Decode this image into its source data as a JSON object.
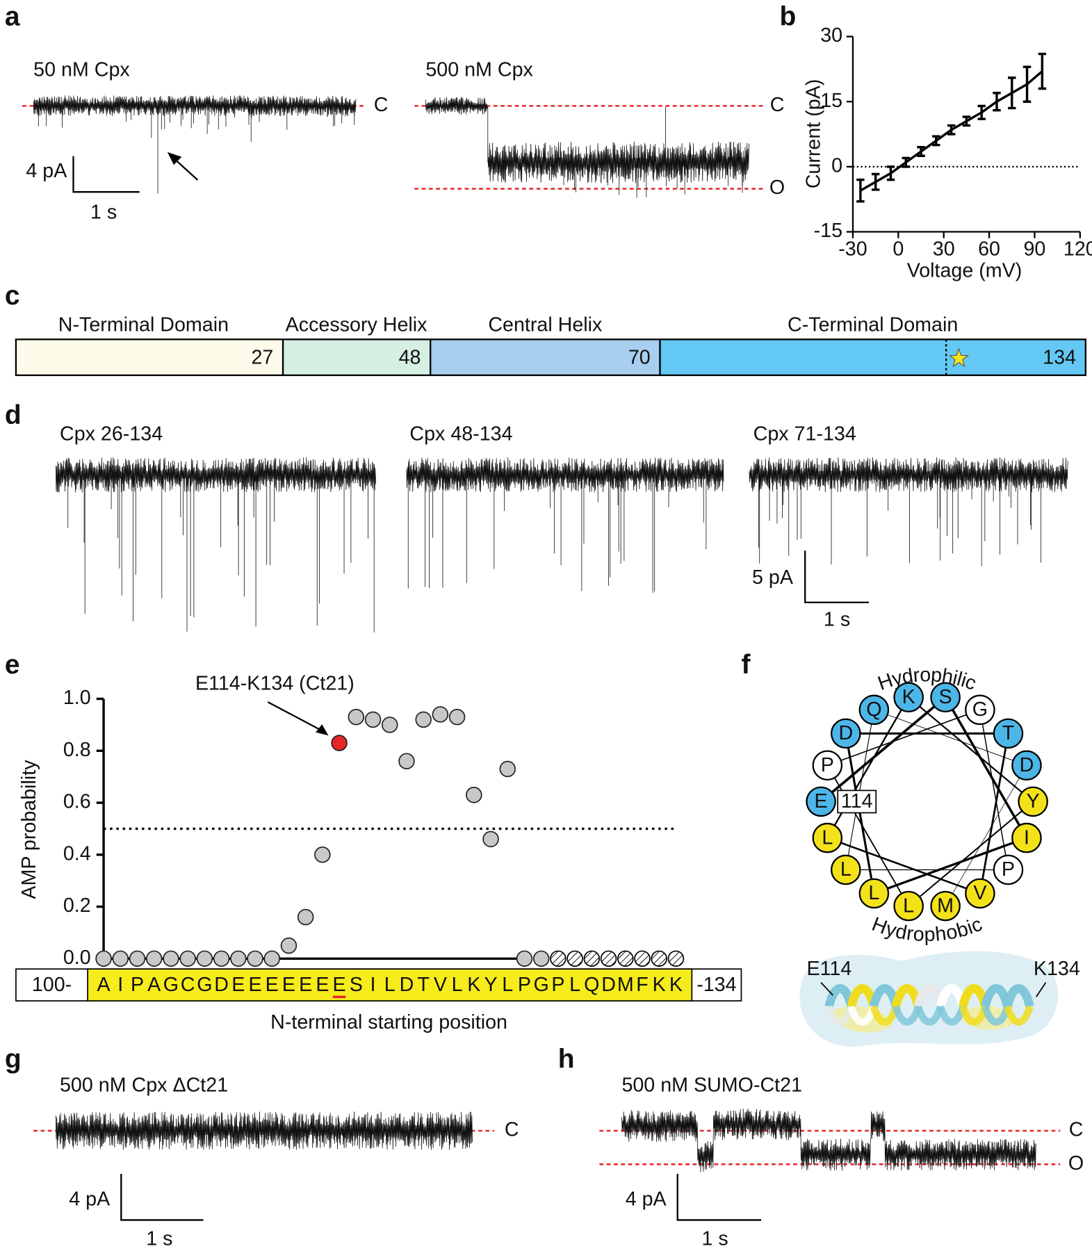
{
  "panel_a": {
    "label": "a",
    "left_trace": "50 nM Cpx",
    "right_trace": "500 nM Cpx",
    "closed": "C",
    "open": "O",
    "scale_current": "4 pA",
    "scale_time": "1 s"
  },
  "panel_c": {
    "label": "c",
    "domains": [
      {
        "name": "N-Terminal Domain",
        "end": 27,
        "color": "#fdfbea"
      },
      {
        "name": "Accessory Helix",
        "end": 48,
        "color": "#d5efe3"
      },
      {
        "name": "Central Helix",
        "end": 70,
        "color": "#a8cef0"
      },
      {
        "name": "C-Terminal Domain",
        "end": 134,
        "color": "#63c8f3"
      }
    ]
  },
  "panel_d": {
    "label": "d",
    "traces": [
      "Cpx 26-134",
      "Cpx 48-134",
      "Cpx 71-134"
    ],
    "scale_current": "5 pA",
    "scale_time": "1 s"
  },
  "panel_f": {
    "label": "f",
    "top_label": "Hydrophilic",
    "bottom_label": "Hydrophobic",
    "start_label": "114",
    "helix_start": "E114",
    "helix_end": "K134",
    "residues": [
      {
        "letter": "E",
        "color": "#4db6e8"
      },
      {
        "letter": "S",
        "color": "#4db6e8"
      },
      {
        "letter": "I",
        "color": "#f3e21a"
      },
      {
        "letter": "L",
        "color": "#f3e21a"
      },
      {
        "letter": "D",
        "color": "#4db6e8"
      },
      {
        "letter": "T",
        "color": "#4db6e8"
      },
      {
        "letter": "V",
        "color": "#f3e21a"
      },
      {
        "letter": "L",
        "color": "#f3e21a"
      },
      {
        "letter": "K",
        "color": "#4db6e8"
      },
      {
        "letter": "Y",
        "color": "#f3e21a"
      },
      {
        "letter": "L",
        "color": "#f3e21a"
      },
      {
        "letter": "P",
        "color": "#ffffff"
      },
      {
        "letter": "G",
        "color": "#ffffff"
      },
      {
        "letter": "P",
        "color": "#ffffff"
      },
      {
        "letter": "L",
        "color": "#f3e21a"
      },
      {
        "letter": "Q",
        "color": "#4db6e8"
      },
      {
        "letter": "D",
        "color": "#4db6e8"
      },
      {
        "letter": "M",
        "color": "#f3e21a"
      }
    ]
  },
  "panel_g": {
    "label": "g",
    "trace": "500 nM Cpx ΔCt21",
    "closed": "C",
    "scale_current": "4 pA",
    "scale_time": "1 s"
  },
  "panel_h": {
    "label": "h",
    "trace": "500 nM SUMO-Ct21",
    "closed": "C",
    "open": "O",
    "scale_current": "4 pA",
    "scale_time": "1 s"
  },
  "chart_data": [
    {
      "type": "line",
      "panel_label": "b",
      "x": [
        -25,
        -15,
        -5,
        5,
        15,
        25,
        35,
        45,
        55,
        65,
        75,
        85,
        95
      ],
      "series": [
        {
          "color": "#000000",
          "values": [
            -5.5,
            -3.5,
            -1.5,
            1,
            3.5,
            6,
            8.5,
            10.5,
            12.5,
            15,
            17,
            19,
            22
          ],
          "errors": [
            2.5,
            1.8,
            1.5,
            1,
            1,
            1,
            1,
            1,
            1.5,
            2,
            3.5,
            4,
            4
          ]
        }
      ],
      "xlim": [
        -30,
        120
      ],
      "xticks": [
        -30,
        0,
        30,
        60,
        90,
        120
      ],
      "ylim": [
        -15,
        30
      ],
      "yticks": [
        -15,
        0,
        15,
        30
      ],
      "x_label": "Voltage (mV)",
      "y_label": "Current (pA)",
      "reference_line": 0
    },
    {
      "type": "scatter",
      "panel_label": "e",
      "x": [
        100,
        101,
        102,
        103,
        104,
        105,
        106,
        107,
        108,
        109,
        110,
        111,
        112,
        113,
        114,
        115,
        116,
        117,
        118,
        119,
        120,
        121,
        122,
        123,
        124,
        125,
        126,
        127,
        128,
        129,
        130,
        131,
        132,
        133,
        134
      ],
      "series": [
        {
          "color": "#c8c8c8",
          "values": [
            0,
            0,
            0,
            0,
            0,
            0,
            0,
            0,
            0,
            0,
            0,
            0.05,
            0.16,
            0.4,
            0.83,
            0.93,
            0.92,
            0.9,
            0.76,
            0.92,
            0.94,
            0.93,
            0.63,
            0.46,
            0.73,
            0,
            0,
            null,
            null,
            null,
            null,
            null,
            null,
            null,
            null
          ]
        }
      ],
      "highlight_color": "#e8262a",
      "annotation": {
        "text": "E114-K134 (Ct21)",
        "x": 114
      },
      "threshold": 0.5,
      "ylim": [
        0,
        1
      ],
      "yticks": [
        {
          "value": 0,
          "label": "0.0"
        },
        {
          "value": 0.2,
          "label": "0.2"
        },
        {
          "value": 0.4,
          "label": "0.4"
        },
        {
          "value": 0.6,
          "label": "0.6"
        },
        {
          "value": 0.8,
          "label": "0.8"
        },
        {
          "value": 1,
          "label": "1.0"
        }
      ],
      "y_label": "AMP probability",
      "x_label": "N-terminal starting position",
      "sequence": [
        "A",
        "I",
        "P",
        "A",
        "G",
        "C",
        "G",
        "D",
        "E",
        "E",
        "E",
        "E",
        "E",
        "E",
        "E",
        "S",
        "I",
        "L",
        "D",
        "T",
        "V",
        "L",
        "K",
        "Y",
        "L",
        "P",
        "G",
        "P",
        "L",
        "Q",
        "D",
        "M",
        "F",
        "K",
        "K"
      ],
      "sequence_start": "100-",
      "sequence_end": "-134"
    }
  ]
}
